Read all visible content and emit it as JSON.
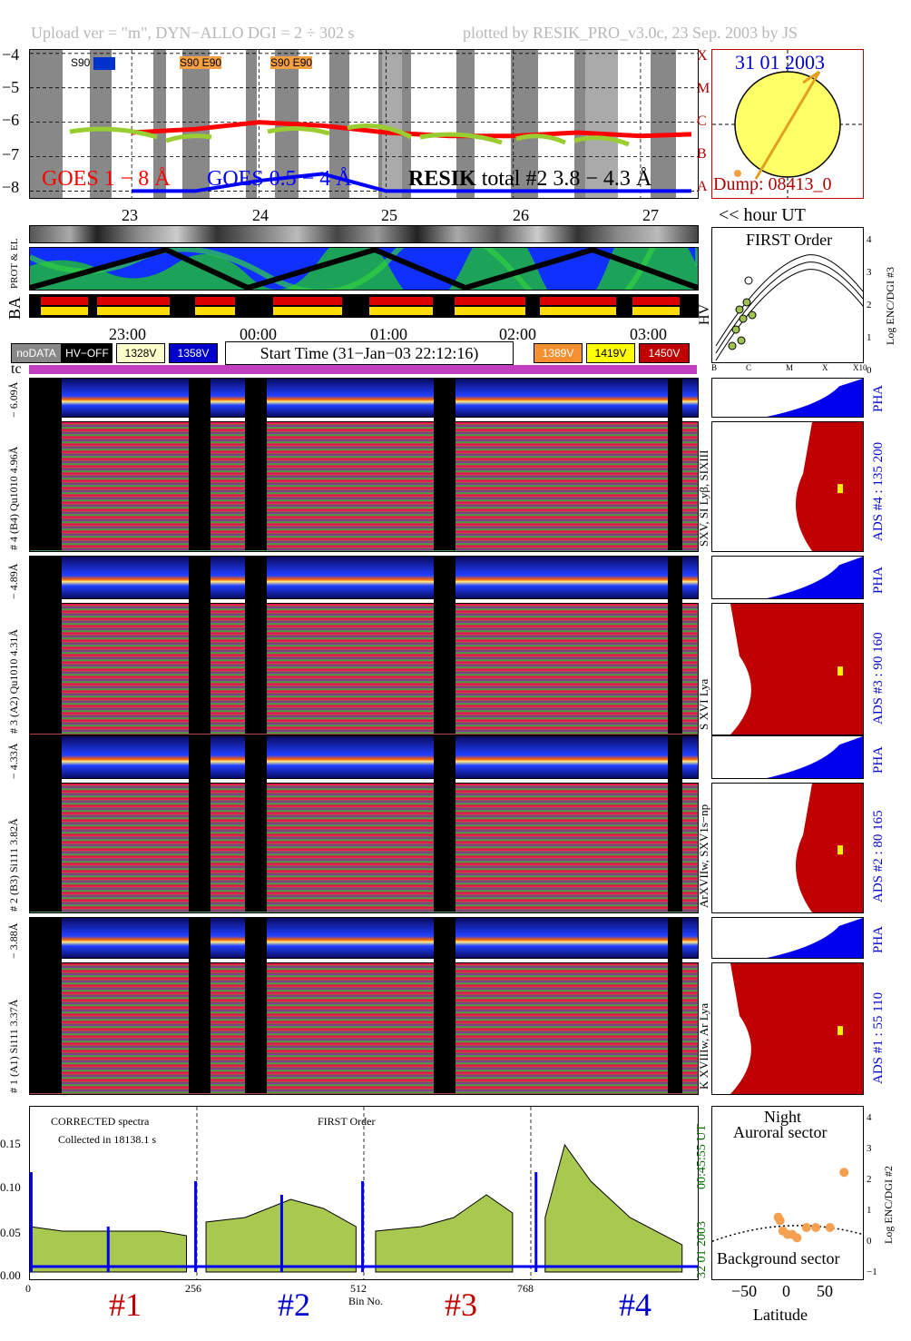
{
  "header": {
    "left": "Upload ver = \"m\", DYN−ALLO DGI =   2 ÷ 302 s",
    "right": "plotted by RESIK_PRO_v3.0c, 23 Sep. 2003 by JS"
  },
  "goes_panel": {
    "yticks": [
      "−4",
      "−5",
      "−6",
      "−7",
      "−8"
    ],
    "class_labels": [
      "X",
      "M",
      "C",
      "B",
      "A"
    ],
    "s90_tags": [
      "S90",
      "S90 E90",
      "S90 E90"
    ],
    "legend_goes_long": "GOES 1 − 8 Å",
    "legend_goes_short": "GOES 0.5 − 4 Å",
    "legend_resik_bold": "RESIK",
    "legend_resik_rest": "total #2  3.8 − 4.3 Å",
    "hour_ticks": [
      "23",
      "24",
      "25",
      "26",
      "27"
    ],
    "hour_unit": "<< hour UT"
  },
  "sun_panel": {
    "date": "31 01 2003",
    "dump": "Dump: 08413_0"
  },
  "status_panel": {
    "row_labels": [
      "PROT & EL",
      "BA",
      "HV"
    ],
    "time_ticks": [
      "23:00",
      "00:00",
      "01:00",
      "02:00",
      "03:00"
    ]
  },
  "legend_bar": {
    "nodata": "noDATA",
    "hvoff": "HV−OFF",
    "v1": "1328V",
    "v2": "1358V",
    "start_time": "Start Time (31−Jan−03 22:12:16)",
    "v3": "1389V",
    "v4": "1419V",
    "v5": "1450V",
    "tc": "tc"
  },
  "first_order_panel": {
    "title": "FIRST Order",
    "yticks": [
      "4",
      "3",
      "2",
      "1",
      "0"
    ],
    "ylabel": "Log ENC/DGI #3",
    "xticks": [
      "B",
      "C",
      "M",
      "X",
      "X10"
    ]
  },
  "channels": [
    {
      "pha_label": "− 6.09Å",
      "main_label": "# 4 (B4) Qu1010 4.96Å",
      "line_label": "SXV, SI Lyβ, SIXIII",
      "ads_label": "ADS #4 :   135 200"
    },
    {
      "pha_label": "− 4.89Å",
      "main_label": "# 3 (A2) Qu1010  4.31Å",
      "line_label": "S XVI Lya",
      "ads_label": "ADS #3 :    90 160"
    },
    {
      "pha_label": "− 4.33Å",
      "main_label": "# 2 (B3) Si111  3.82Å",
      "line_label": "ArXVIIw, SXV1s−np",
      "ads_label": "ADS #2 :    80 165"
    },
    {
      "pha_label": "− 3.88Å",
      "main_label": "# 1 (A1) Si111  3.37Å",
      "line_label": "K XVIIIw, Ar Lya",
      "ads_label": "ADS #1 :    55 110"
    }
  ],
  "pha_label": "PHA",
  "spectrum_panel": {
    "note1": "CORRECTED spectra",
    "note2": "Collected in 18138.1 s",
    "note3": "FIRST Order",
    "yticks": [
      "0.15",
      "0.10",
      "0.05",
      "0.00"
    ],
    "xticks": [
      "0",
      "256",
      "512",
      "768"
    ],
    "xlabel": "Bin No.",
    "time_right": "00:45:55 UT",
    "date_right": "32 01 2003",
    "channel_labels": [
      "#1",
      "#2",
      "#3",
      "#4"
    ]
  },
  "latitude_panel": {
    "title1": "Night",
    "title2": "Auroral sector",
    "title3": "Background sector",
    "xticks": [
      "−50",
      "0",
      "50"
    ],
    "xlabel": "Latitude",
    "yticks": [
      "4",
      "3",
      "2",
      "1",
      "0",
      "−1"
    ],
    "ylabel": "Log ENC/DGI #2"
  },
  "colors": {
    "goes_long": "#ff0000",
    "goes_short": "#0000ff",
    "resik": "#9acd32",
    "ads_fill": "#c00000",
    "pha_fill": "#0000ee",
    "spectrum_fill": "#a8c850",
    "tc_bar": "#c040c0"
  },
  "chart_data": [
    {
      "type": "line",
      "title": "",
      "series": [
        {
          "name": "GOES 1 − 8 Å",
          "x": [
            23.0,
            23.5,
            24.0,
            24.5,
            25.0,
            25.5,
            26.0,
            26.5,
            27.0,
            27.4
          ],
          "values": [
            -6.3,
            -6.2,
            -6.0,
            -6.1,
            -6.3,
            -6.4,
            -6.4,
            -6.3,
            -6.4,
            -6.35
          ]
        },
        {
          "name": "GOES 0.5 − 4 Å",
          "x": [
            23.0,
            23.5,
            24.0,
            24.5,
            25.0,
            25.5,
            26.0,
            26.5,
            27.0,
            27.4
          ],
          "values": [
            -8.0,
            -8.0,
            -7.7,
            -7.5,
            -8.0,
            -8.0,
            -8.0,
            -8.0,
            -8.0,
            -8.0
          ]
        }
      ],
      "ylim": [
        -8.2,
        -3.9
      ],
      "xlim": [
        22.2,
        27.45
      ]
    },
    {
      "type": "line",
      "title": "",
      "xlabel": "Bin No.",
      "xlim": [
        0,
        1024
      ],
      "ylim": [
        0,
        0.18
      ],
      "series": [
        {
          "name": "#1",
          "x": [
            0,
            50,
            128,
            200,
            240
          ],
          "values": [
            0.05,
            0.045,
            0.045,
            0.045,
            0.04
          ]
        },
        {
          "name": "#2",
          "x": [
            270,
            330,
            400,
            450,
            500
          ],
          "values": [
            0.055,
            0.06,
            0.08,
            0.07,
            0.05
          ]
        },
        {
          "name": "#3",
          "x": [
            530,
            600,
            650,
            700,
            740
          ],
          "values": [
            0.045,
            0.05,
            0.06,
            0.085,
            0.065
          ]
        },
        {
          "name": "#4",
          "x": [
            790,
            820,
            860,
            920,
            1000
          ],
          "values": [
            0.06,
            0.14,
            0.1,
            0.06,
            0.03
          ]
        }
      ]
    },
    {
      "type": "scatter",
      "title": "",
      "xlabel": "Latitude",
      "ylabel": "Log ENC/DGI #2",
      "xlim": [
        -80,
        80
      ],
      "ylim": [
        -1,
        4
      ],
      "x": [
        -10,
        -8,
        -5,
        0,
        5,
        10,
        20,
        30,
        45,
        60
      ],
      "values": [
        0.8,
        0.7,
        0.4,
        0.3,
        0.3,
        0.2,
        0.5,
        0.5,
        0.5,
        2.1
      ]
    }
  ]
}
